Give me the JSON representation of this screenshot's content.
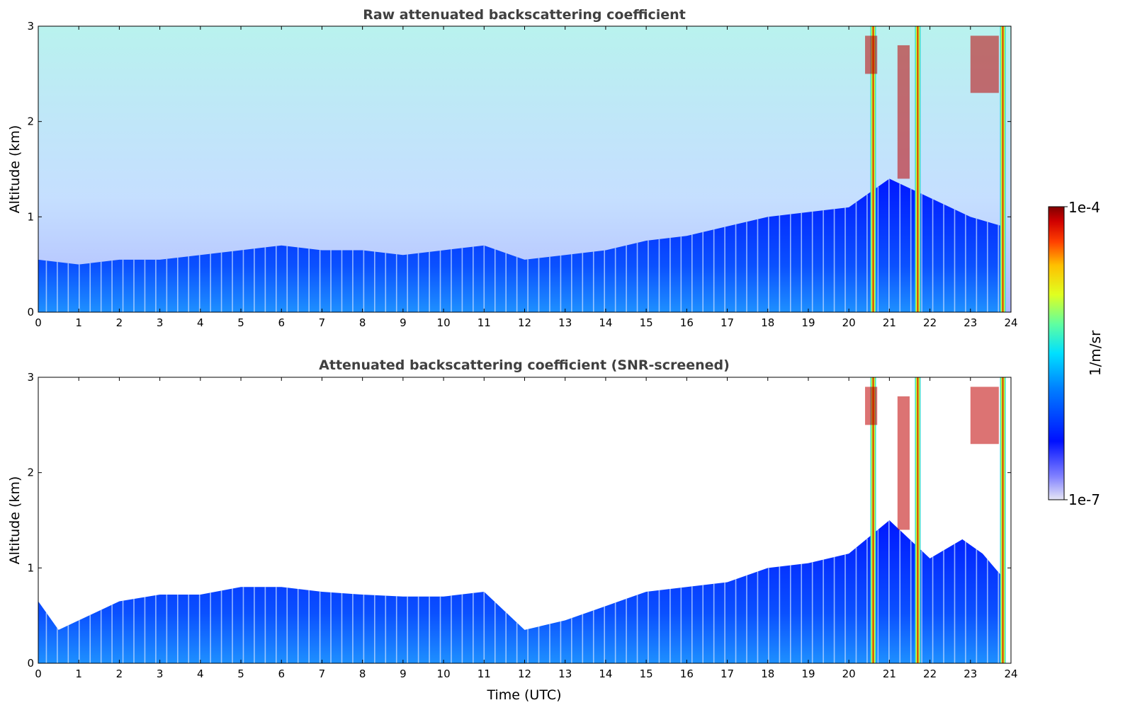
{
  "chart_data": [
    {
      "type": "heatmap",
      "title": "Raw attenuated backscattering coefficient",
      "xlabel": "",
      "ylabel": "Altitude (km)",
      "xlim": [
        0,
        24
      ],
      "ylim": [
        0,
        3
      ],
      "xticks": [
        "0",
        "1",
        "2",
        "3",
        "4",
        "5",
        "6",
        "7",
        "8",
        "9",
        "10",
        "11",
        "12",
        "13",
        "14",
        "15",
        "16",
        "17",
        "18",
        "19",
        "20",
        "21",
        "22",
        "23",
        "24"
      ],
      "yticks": [
        "0",
        "1",
        "2",
        "3"
      ],
      "boundary_layer_top_km": [
        [
          0,
          0.55
        ],
        [
          1,
          0.5
        ],
        [
          2,
          0.55
        ],
        [
          3,
          0.55
        ],
        [
          4,
          0.6
        ],
        [
          5,
          0.65
        ],
        [
          6,
          0.7
        ],
        [
          7,
          0.65
        ],
        [
          8,
          0.65
        ],
        [
          9,
          0.6
        ],
        [
          10,
          0.65
        ],
        [
          11,
          0.7
        ],
        [
          12,
          0.55
        ],
        [
          13,
          0.6
        ],
        [
          14,
          0.65
        ],
        [
          15,
          0.75
        ],
        [
          16,
          0.8
        ],
        [
          17,
          0.9
        ],
        [
          18,
          1.0
        ],
        [
          19,
          1.05
        ],
        [
          20,
          1.1
        ],
        [
          21,
          1.4
        ],
        [
          22,
          1.2
        ],
        [
          23,
          1.0
        ],
        [
          23.8,
          0.9
        ]
      ],
      "cloud_events": [
        {
          "time": 20.6,
          "alt_range": [
            0,
            3
          ]
        },
        {
          "time": 21.7,
          "alt_range": [
            0,
            3
          ]
        },
        {
          "time": 23.8,
          "alt_range": [
            0,
            3
          ]
        },
        {
          "time_range": [
            20.4,
            20.7
          ],
          "alt_range": [
            2.5,
            2.9
          ]
        },
        {
          "time_range": [
            21.2,
            21.5
          ],
          "alt_range": [
            1.4,
            2.8
          ]
        },
        {
          "time_range": [
            23.0,
            23.7
          ],
          "alt_range": [
            2.3,
            2.9
          ]
        }
      ]
    },
    {
      "type": "heatmap",
      "title": "Attenuated backscattering coefficient (SNR-screened)",
      "xlabel": "Time (UTC)",
      "ylabel": "Altitude (km)",
      "xlim": [
        0,
        24
      ],
      "ylim": [
        0,
        3
      ],
      "xticks": [
        "0",
        "1",
        "2",
        "3",
        "4",
        "5",
        "6",
        "7",
        "8",
        "9",
        "10",
        "11",
        "12",
        "13",
        "14",
        "15",
        "16",
        "17",
        "18",
        "19",
        "20",
        "21",
        "22",
        "23",
        "24"
      ],
      "yticks": [
        "0",
        "1",
        "2",
        "3"
      ],
      "boundary_layer_top_km": [
        [
          0,
          0.65
        ],
        [
          0.5,
          0.35
        ],
        [
          1,
          0.45
        ],
        [
          2,
          0.65
        ],
        [
          3,
          0.72
        ],
        [
          4,
          0.72
        ],
        [
          5,
          0.8
        ],
        [
          6,
          0.8
        ],
        [
          7,
          0.75
        ],
        [
          8,
          0.72
        ],
        [
          9,
          0.7
        ],
        [
          10,
          0.7
        ],
        [
          11,
          0.75
        ],
        [
          12,
          0.35
        ],
        [
          13,
          0.45
        ],
        [
          14,
          0.6
        ],
        [
          15,
          0.75
        ],
        [
          16,
          0.8
        ],
        [
          17,
          0.85
        ],
        [
          18,
          1.0
        ],
        [
          19,
          1.05
        ],
        [
          20,
          1.15
        ],
        [
          21,
          1.5
        ],
        [
          22,
          1.1
        ],
        [
          22.8,
          1.3
        ],
        [
          23.3,
          1.15
        ],
        [
          23.8,
          0.9
        ]
      ]
    }
  ],
  "colorbar": {
    "label": "1/m/sr",
    "max_label": "1e-4",
    "min_label": "1e-7",
    "scale": "log",
    "range": [
      1e-07,
      0.0001
    ],
    "colormap": "jet",
    "colors": [
      "#e6e6f5",
      "#8080ff",
      "#0010ff",
      "#0080ff",
      "#00e0ff",
      "#60ffa0",
      "#e0ff20",
      "#ffc000",
      "#ff4000",
      "#d00000",
      "#800000"
    ]
  }
}
